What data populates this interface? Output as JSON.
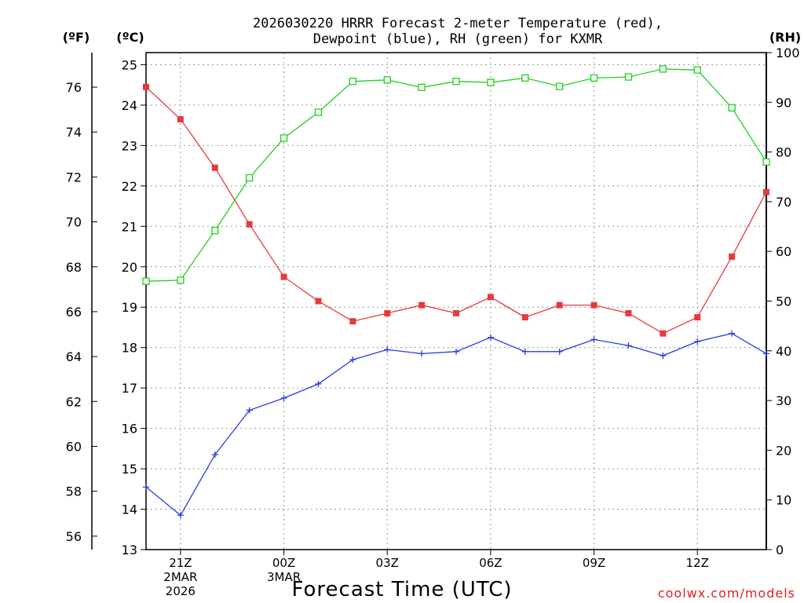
{
  "title_line1": "2026030220 HRRR Forecast 2-meter Temperature (red),",
  "title_line2": "Dewpoint (blue), RH (green) for KXMR",
  "units": {
    "f": "(ºF)",
    "c": "(ºC)",
    "rh": "(RH)"
  },
  "xlabel": "Forecast Time (UTC)",
  "credit": "coolwx.com/models",
  "colors": {
    "temperature": "#e8393a",
    "dewpoint": "#2a3de0",
    "rh": "#20d020"
  },
  "chart_data": {
    "type": "line",
    "x": [
      "20Z",
      "21Z",
      "22Z",
      "23Z",
      "00Z",
      "01Z",
      "02Z",
      "03Z",
      "04Z",
      "05Z",
      "06Z",
      "07Z",
      "08Z",
      "09Z",
      "10Z",
      "11Z",
      "12Z",
      "13Z",
      "14Z"
    ],
    "xtick_labels": [
      {
        "index": 1,
        "lines": [
          "21Z",
          "2MAR",
          "2026"
        ]
      },
      {
        "index": 4,
        "lines": [
          "00Z",
          "3MAR"
        ]
      },
      {
        "index": 7,
        "lines": [
          "03Z"
        ]
      },
      {
        "index": 10,
        "lines": [
          "06Z"
        ]
      },
      {
        "index": 13,
        "lines": [
          "09Z"
        ]
      },
      {
        "index": 16,
        "lines": [
          "12Z"
        ]
      }
    ],
    "y_left_c": {
      "range": [
        13,
        25.3
      ],
      "ticks": [
        13,
        14,
        15,
        16,
        17,
        18,
        19,
        20,
        21,
        22,
        23,
        24,
        25
      ]
    },
    "y_left_f": {
      "ticks": [
        56,
        58,
        60,
        62,
        64,
        66,
        68,
        70,
        72,
        74,
        76
      ]
    },
    "y_right_rh": {
      "range": [
        0,
        100
      ],
      "ticks": [
        0,
        10,
        20,
        30,
        40,
        50,
        60,
        70,
        80,
        90,
        100
      ]
    },
    "grid": true,
    "series": [
      {
        "key": "temperature",
        "axis": "c",
        "marker": "filled-square",
        "values": [
          24.45,
          23.65,
          22.45,
          21.05,
          19.75,
          19.15,
          18.65,
          18.85,
          19.05,
          18.85,
          19.25,
          18.75,
          19.05,
          19.05,
          18.85,
          18.35,
          18.75,
          20.25,
          21.85
        ]
      },
      {
        "key": "dewpoint",
        "axis": "c",
        "marker": "plus",
        "values": [
          14.55,
          13.85,
          15.35,
          16.45,
          16.75,
          17.1,
          17.7,
          17.95,
          17.85,
          17.9,
          18.25,
          17.9,
          17.9,
          18.2,
          18.05,
          17.8,
          18.15,
          18.35,
          17.85
        ]
      },
      {
        "key": "rh",
        "axis": "rh",
        "marker": "open-square",
        "values": [
          54,
          54.2,
          64.2,
          74.8,
          82.8,
          88,
          94.2,
          94.5,
          93,
          94.2,
          94,
          94.9,
          93.2,
          94.9,
          95.1,
          96.7,
          96.5,
          88.9,
          78
        ]
      }
    ]
  }
}
